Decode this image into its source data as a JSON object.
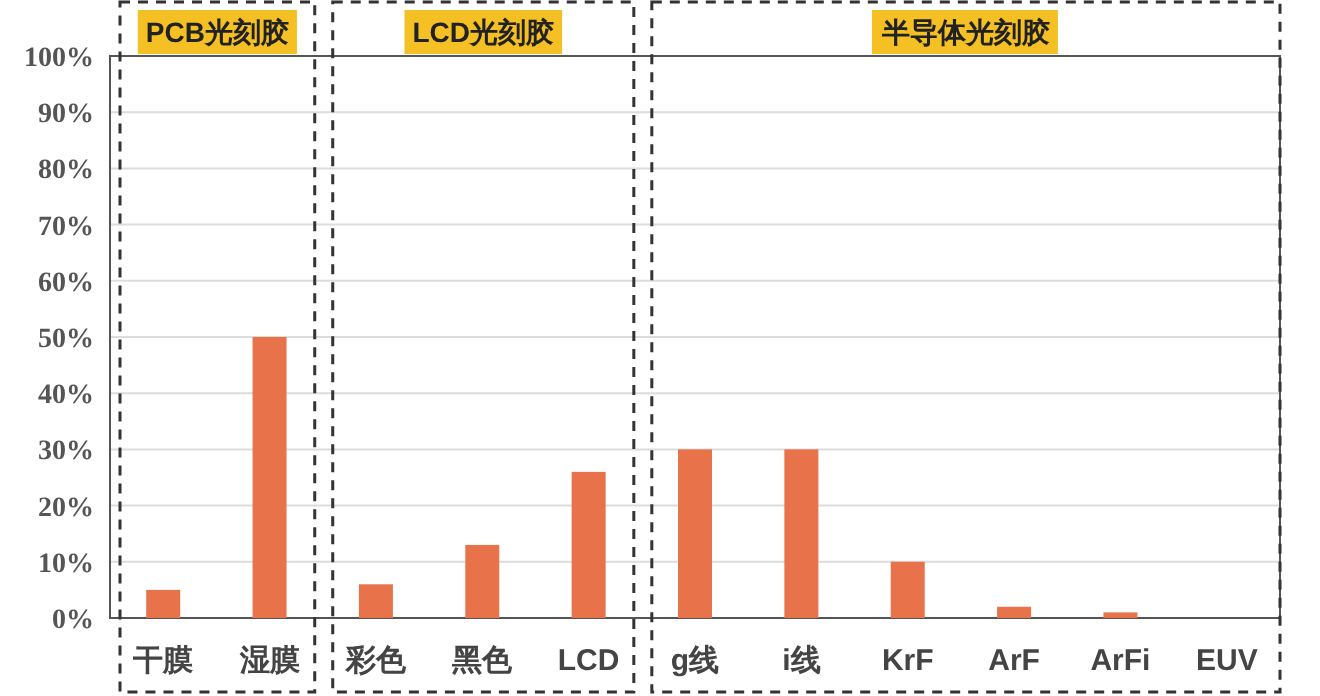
{
  "chart_data": {
    "type": "bar",
    "categories": [
      "干膜",
      "湿膜",
      "彩色",
      "黑色",
      "LCD",
      "g线",
      "i线",
      "KrF",
      "ArF",
      "ArFi",
      "EUV"
    ],
    "values": [
      5,
      50,
      6,
      13,
      26,
      30,
      30,
      10,
      2,
      1,
      0
    ],
    "color": "#e8734a",
    "ylim": [
      0,
      100
    ],
    "yticks": [
      {
        "value": 0,
        "label": "0%"
      },
      {
        "value": 10,
        "label": "10%"
      },
      {
        "value": 20,
        "label": "20%"
      },
      {
        "value": 30,
        "label": "30%"
      },
      {
        "value": 40,
        "label": "40%"
      },
      {
        "value": 50,
        "label": "50%"
      },
      {
        "value": 60,
        "label": "60%"
      },
      {
        "value": 70,
        "label": "70%"
      },
      {
        "value": 80,
        "label": "80%"
      },
      {
        "value": 90,
        "label": "90%"
      },
      {
        "value": 100,
        "label": "100%"
      }
    ],
    "grid": "y",
    "annotations": [
      "PCB光刻胶",
      "LCD光刻胶",
      "半导体光刻胶"
    ]
  }
}
